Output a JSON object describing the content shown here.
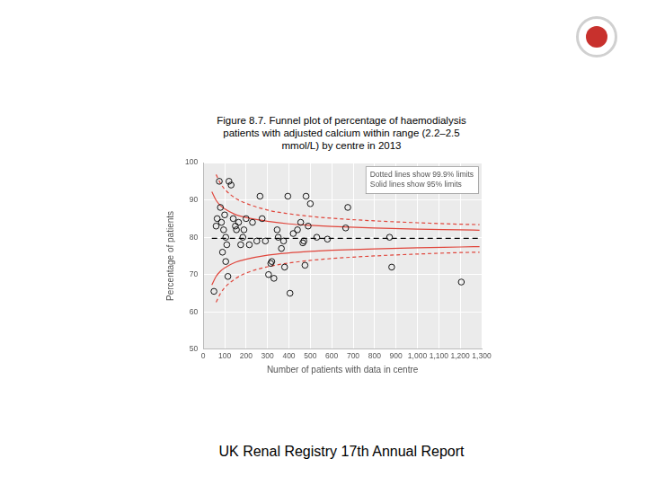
{
  "chart_data": {
    "type": "scatter",
    "title": "Figure 8.7. Funnel plot of percentage of haemodialysis patients with adjusted calcium within range (2.2–2.5 mmol/L) by centre in 2013",
    "x_label": "Number of patients with data in centre",
    "y_label": "Percentage of patients",
    "annotations": [
      "Dotted lines show 99.9% limits",
      "Solid lines show 95% limits"
    ],
    "xlim": [
      0,
      1300
    ],
    "xticks": [
      0,
      100,
      200,
      300,
      400,
      500,
      600,
      700,
      800,
      900,
      {
        "value": 1000,
        "label": "1,000"
      },
      {
        "value": 1100,
        "label": "1,100"
      },
      {
        "value": 1200,
        "label": "1,200"
      },
      {
        "value": 1300,
        "label": "1,300"
      }
    ],
    "ylim": [
      50,
      100
    ],
    "yticks": [
      50,
      60,
      70,
      80,
      90,
      100
    ],
    "grid": true,
    "series": [
      {
        "type": "scatter",
        "marker": "open_circle",
        "color": "#000000",
        "x": [
          50,
          60,
          65,
          75,
          80,
          85,
          90,
          95,
          100,
          105,
          105,
          110,
          115,
          120,
          130,
          140,
          150,
          155,
          165,
          175,
          185,
          190,
          200,
          215,
          230,
          250,
          265,
          275,
          290,
          305,
          315,
          320,
          330,
          345,
          350,
          365,
          375,
          380,
          395,
          405,
          420,
          440,
          455,
          465,
          470,
          475,
          480,
          490,
          500,
          530,
          580,
          665,
          675,
          870,
          880,
          1205
        ],
        "values": [
          65.5,
          83,
          85,
          95,
          88,
          84,
          76,
          82,
          86,
          80,
          73.5,
          78,
          69.5,
          95,
          94,
          85,
          83,
          82,
          84,
          78,
          80,
          82,
          85,
          78,
          84,
          79,
          91,
          85,
          79,
          70,
          73,
          73.5,
          69,
          82,
          80,
          77,
          79,
          72,
          91,
          65,
          81,
          82,
          84,
          78.5,
          79,
          72.5,
          91,
          83,
          89,
          80,
          79.5,
          82.5,
          88,
          80,
          72,
          68
        ]
      },
      {
        "type": "line",
        "line_style": "dashed",
        "color": "#000000",
        "x": [
          40,
          1290
        ],
        "values": [
          79.7,
          79.7
        ]
      },
      {
        "type": "line",
        "line_style": "solid",
        "color": "#e0463c",
        "x": [
          40,
          60,
          80,
          100,
          150,
          200,
          300,
          400,
          500,
          600,
          800,
          1000,
          1200,
          1290
        ],
        "values": [
          92.2,
          89.9,
          88.5,
          87.6,
          86.1,
          85.3,
          84.3,
          83.6,
          83.2,
          82.9,
          82.5,
          82.2,
          82.0,
          81.9
        ]
      },
      {
        "type": "line",
        "line_style": "solid",
        "color": "#e0463c",
        "x": [
          40,
          60,
          80,
          100,
          150,
          200,
          300,
          400,
          500,
          600,
          800,
          1000,
          1200,
          1290
        ],
        "values": [
          67.2,
          69.5,
          70.9,
          71.8,
          73.3,
          74.1,
          75.2,
          75.8,
          76.2,
          76.5,
          76.9,
          77.2,
          77.4,
          77.5
        ]
      },
      {
        "type": "line",
        "line_style": "dotted",
        "color": "#e0463c",
        "x": [
          60,
          80,
          100,
          150,
          200,
          300,
          400,
          500,
          600,
          800,
          1000,
          1200,
          1290
        ],
        "values": [
          96.8,
          94.5,
          92.9,
          90.5,
          89.1,
          87.3,
          86.3,
          85.6,
          85.1,
          84.4,
          83.9,
          83.5,
          83.4
        ]
      },
      {
        "type": "line",
        "line_style": "dotted",
        "color": "#e0463c",
        "x": [
          60,
          80,
          100,
          150,
          200,
          300,
          400,
          500,
          600,
          800,
          1000,
          1200,
          1290
        ],
        "values": [
          62.6,
          64.9,
          66.5,
          68.9,
          70.4,
          72.1,
          73.1,
          73.8,
          74.3,
          75.0,
          75.5,
          75.9,
          76.0
        ]
      }
    ]
  },
  "footer": "UK Renal Registry 17th Annual Report"
}
